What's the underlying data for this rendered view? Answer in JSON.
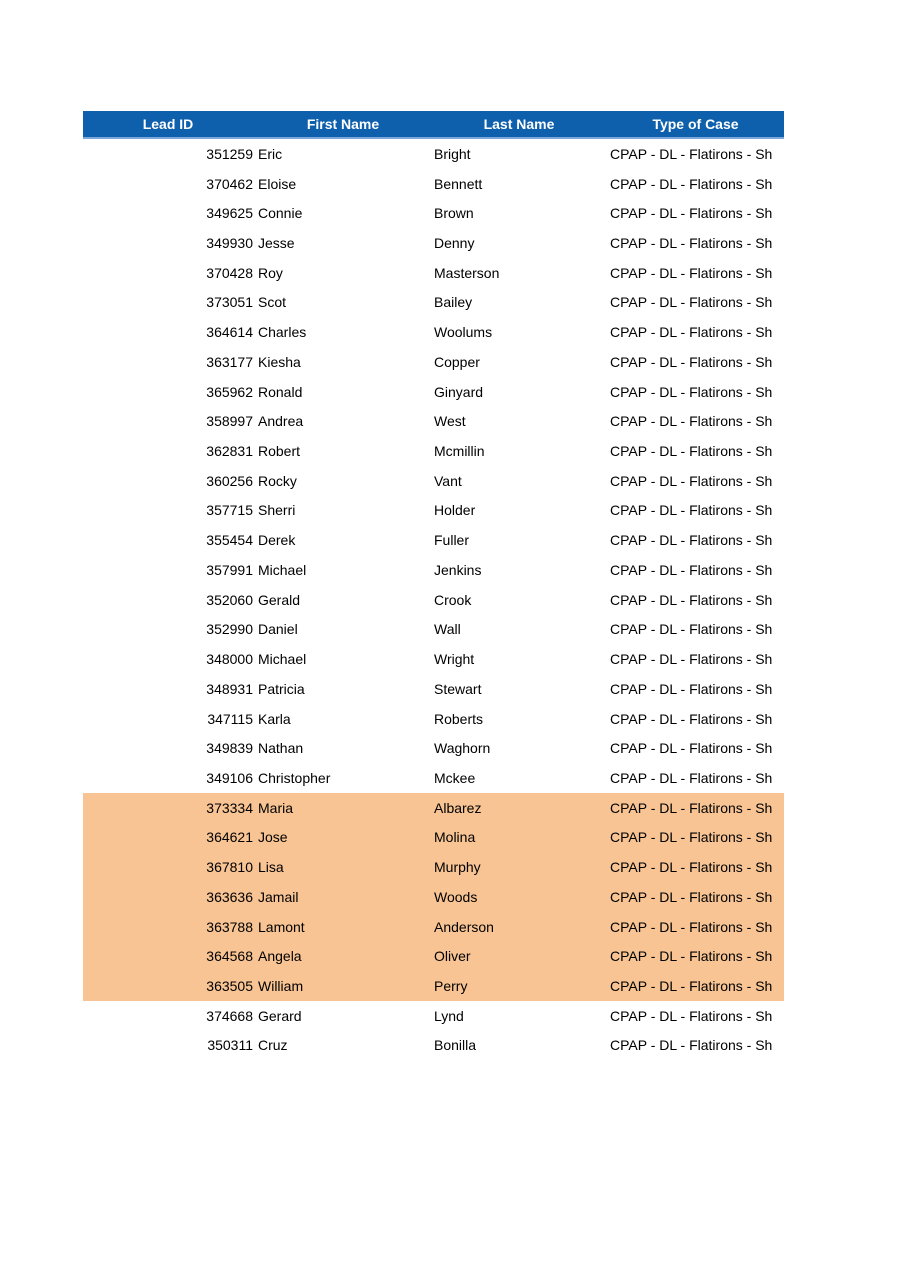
{
  "colors": {
    "header_bg": "#0f60ac",
    "header_border": "#7ba7db",
    "header_text": "#ffffff",
    "highlight_bg": "#f8c493",
    "row_text": "#000000"
  },
  "table": {
    "columns": [
      {
        "label": "Lead ID"
      },
      {
        "label": "First Name"
      },
      {
        "label": "Last Name"
      },
      {
        "label": "Type of Case"
      }
    ],
    "rows": [
      {
        "lead_id": "351259",
        "first_name": "Eric",
        "last_name": "Bright",
        "type_of_case": "CPAP - DL - Flatirons - Sh",
        "highlighted": false
      },
      {
        "lead_id": "370462",
        "first_name": "Eloise",
        "last_name": "Bennett",
        "type_of_case": "CPAP - DL - Flatirons - Sh",
        "highlighted": false
      },
      {
        "lead_id": "349625",
        "first_name": "Connie",
        "last_name": "Brown",
        "type_of_case": "CPAP - DL - Flatirons - Sh",
        "highlighted": false
      },
      {
        "lead_id": "349930",
        "first_name": "Jesse",
        "last_name": "Denny",
        "type_of_case": "CPAP - DL - Flatirons - Sh",
        "highlighted": false
      },
      {
        "lead_id": "370428",
        "first_name": "Roy",
        "last_name": "Masterson",
        "type_of_case": "CPAP - DL - Flatirons - Sh",
        "highlighted": false
      },
      {
        "lead_id": "373051",
        "first_name": "Scot",
        "last_name": "Bailey",
        "type_of_case": "CPAP - DL - Flatirons - Sh",
        "highlighted": false
      },
      {
        "lead_id": "364614",
        "first_name": "Charles",
        "last_name": "Woolums",
        "type_of_case": "CPAP - DL - Flatirons - Sh",
        "highlighted": false
      },
      {
        "lead_id": "363177",
        "first_name": "Kiesha",
        "last_name": "Copper",
        "type_of_case": "CPAP - DL - Flatirons - Sh",
        "highlighted": false
      },
      {
        "lead_id": "365962",
        "first_name": "Ronald",
        "last_name": "Ginyard",
        "type_of_case": "CPAP - DL - Flatirons - Sh",
        "highlighted": false
      },
      {
        "lead_id": "358997",
        "first_name": "Andrea",
        "last_name": "West",
        "type_of_case": "CPAP - DL - Flatirons - Sh",
        "highlighted": false
      },
      {
        "lead_id": "362831",
        "first_name": "Robert",
        "last_name": "Mcmillin",
        "type_of_case": "CPAP - DL - Flatirons - Sh",
        "highlighted": false
      },
      {
        "lead_id": "360256",
        "first_name": "Rocky",
        "last_name": "Vant",
        "type_of_case": "CPAP - DL - Flatirons - Sh",
        "highlighted": false
      },
      {
        "lead_id": "357715",
        "first_name": "Sherri",
        "last_name": "Holder",
        "type_of_case": "CPAP - DL - Flatirons - Sh",
        "highlighted": false
      },
      {
        "lead_id": "355454",
        "first_name": "Derek",
        "last_name": "Fuller",
        "type_of_case": "CPAP - DL - Flatirons - Sh",
        "highlighted": false
      },
      {
        "lead_id": "357991",
        "first_name": "Michael",
        "last_name": "Jenkins",
        "type_of_case": "CPAP - DL - Flatirons - Sh",
        "highlighted": false
      },
      {
        "lead_id": "352060",
        "first_name": "Gerald",
        "last_name": "Crook",
        "type_of_case": "CPAP - DL - Flatirons - Sh",
        "highlighted": false
      },
      {
        "lead_id": "352990",
        "first_name": "Daniel",
        "last_name": "Wall",
        "type_of_case": "CPAP - DL - Flatirons - Sh",
        "highlighted": false
      },
      {
        "lead_id": "348000",
        "first_name": "Michael",
        "last_name": "Wright",
        "type_of_case": "CPAP - DL - Flatirons - Sh",
        "highlighted": false
      },
      {
        "lead_id": "348931",
        "first_name": "Patricia",
        "last_name": "Stewart",
        "type_of_case": "CPAP - DL - Flatirons - Sh",
        "highlighted": false
      },
      {
        "lead_id": "347115",
        "first_name": "Karla",
        "last_name": "Roberts",
        "type_of_case": "CPAP - DL - Flatirons - Sh",
        "highlighted": false
      },
      {
        "lead_id": "349839",
        "first_name": "Nathan",
        "last_name": "Waghorn",
        "type_of_case": "CPAP - DL - Flatirons - Sh",
        "highlighted": false
      },
      {
        "lead_id": "349106",
        "first_name": "Christopher",
        "last_name": "Mckee",
        "type_of_case": "CPAP - DL - Flatirons - Sh",
        "highlighted": false
      },
      {
        "lead_id": "373334",
        "first_name": "Maria",
        "last_name": "Albarez",
        "type_of_case": "CPAP - DL - Flatirons - Sh",
        "highlighted": true
      },
      {
        "lead_id": "364621",
        "first_name": "Jose",
        "last_name": "Molina",
        "type_of_case": "CPAP - DL - Flatirons - Sh",
        "highlighted": true
      },
      {
        "lead_id": "367810",
        "first_name": "Lisa",
        "last_name": "Murphy",
        "type_of_case": "CPAP - DL - Flatirons - Sh",
        "highlighted": true
      },
      {
        "lead_id": "363636",
        "first_name": "Jamail",
        "last_name": "Woods",
        "type_of_case": "CPAP - DL - Flatirons - Sh",
        "highlighted": true
      },
      {
        "lead_id": "363788",
        "first_name": "Lamont",
        "last_name": "Anderson",
        "type_of_case": "CPAP - DL - Flatirons - Sh",
        "highlighted": true
      },
      {
        "lead_id": "364568",
        "first_name": "Angela",
        "last_name": "Oliver",
        "type_of_case": "CPAP - DL - Flatirons - Sh",
        "highlighted": true
      },
      {
        "lead_id": "363505",
        "first_name": "William",
        "last_name": "Perry",
        "type_of_case": "CPAP - DL - Flatirons - Sh",
        "highlighted": true
      },
      {
        "lead_id": "374668",
        "first_name": "Gerard",
        "last_name": "Lynd",
        "type_of_case": "CPAP - DL - Flatirons - Sh",
        "highlighted": false
      },
      {
        "lead_id": "350311",
        "first_name": "Cruz",
        "last_name": "Bonilla",
        "type_of_case": "CPAP - DL - Flatirons - Sh",
        "highlighted": false
      }
    ]
  }
}
